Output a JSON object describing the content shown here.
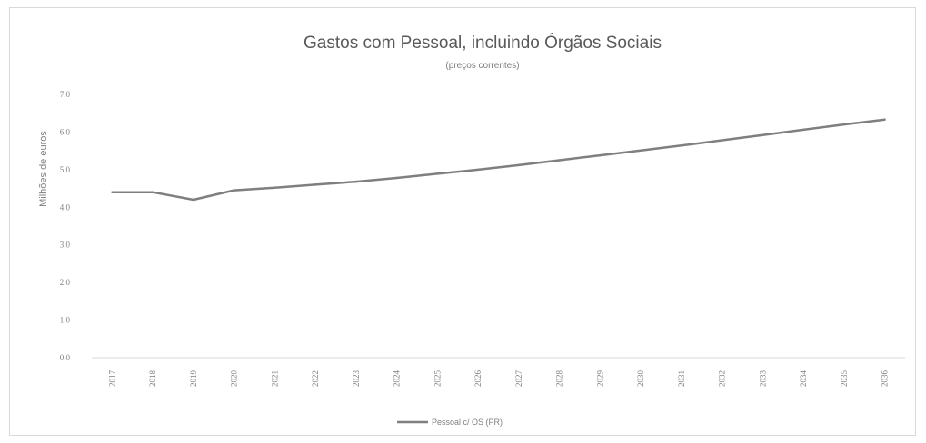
{
  "chart_data": {
    "type": "line",
    "title": "Gastos com Pessoal, incluindo Órgãos Sociais",
    "subtitle": "(preços correntes)",
    "xlabel": "",
    "ylabel": "Milhões de euros",
    "ylim": [
      0,
      7
    ],
    "y_ticks": [
      "0.0",
      "1.0",
      "2.0",
      "3.0",
      "4.0",
      "5.0",
      "6.0",
      "7.0"
    ],
    "grid": false,
    "legend_position": "bottom",
    "x": [
      "2017",
      "2018",
      "2019",
      "2020",
      "2021",
      "2022",
      "2023",
      "2024",
      "2025",
      "2026",
      "2027",
      "2028",
      "2029",
      "2030",
      "2031",
      "2032",
      "2033",
      "2034",
      "2035",
      "2036"
    ],
    "series": [
      {
        "name": "Pessoal c/ OS (PR)",
        "color": "#7f7f7f",
        "values": [
          4.4,
          4.4,
          4.2,
          4.45,
          4.52,
          4.6,
          4.68,
          4.78,
          4.89,
          5.0,
          5.12,
          5.25,
          5.38,
          5.51,
          5.64,
          5.78,
          5.92,
          6.06,
          6.2,
          6.33
        ]
      }
    ]
  }
}
